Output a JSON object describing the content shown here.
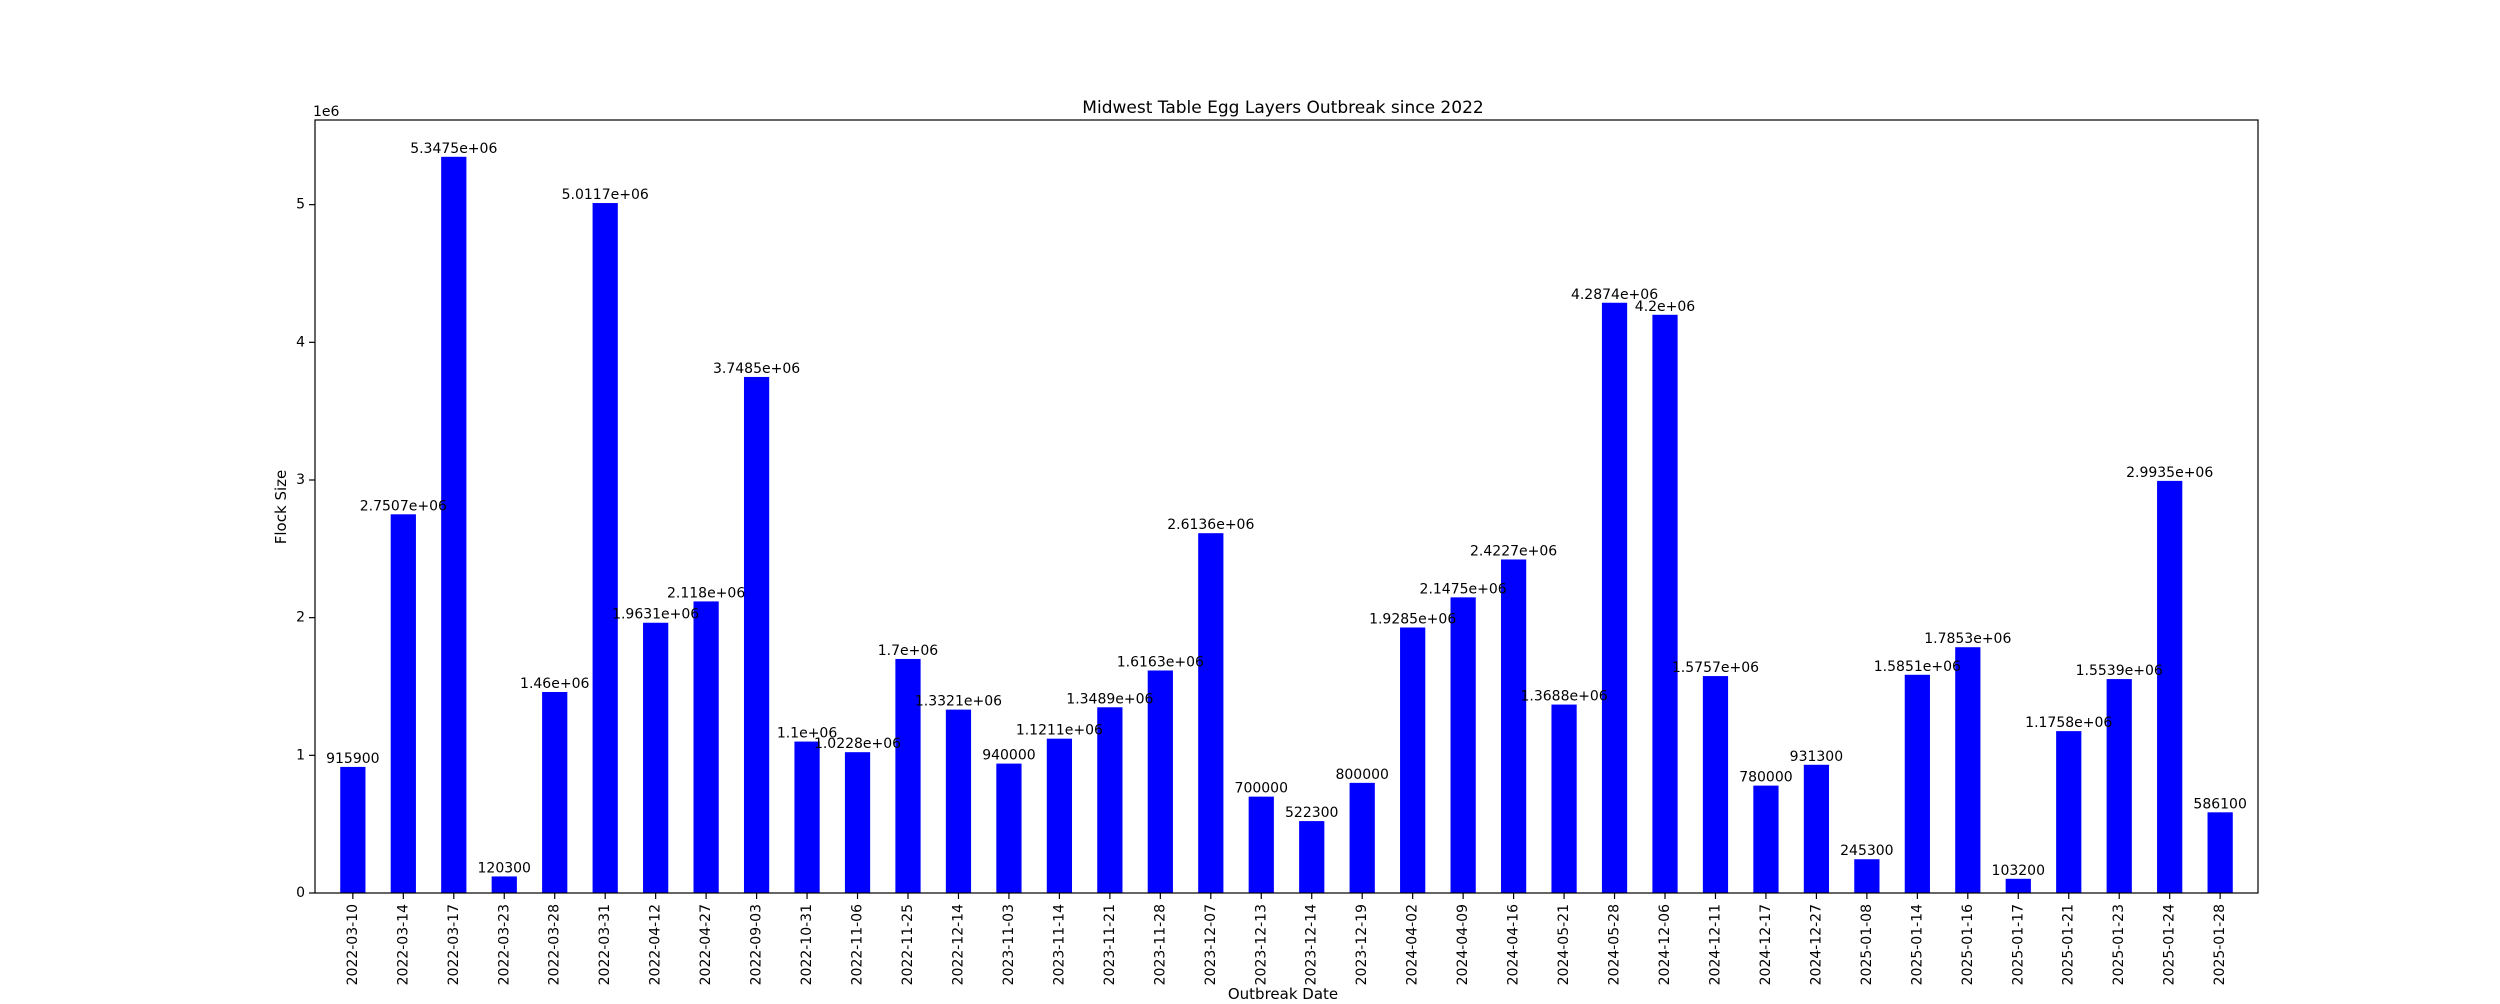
{
  "chart_data": {
    "type": "bar",
    "title": "Midwest Table Egg Layers Outbreak since 2022",
    "xlabel": "Outbreak Date",
    "ylabel": "Flock Size",
    "y_offset_label": "1e6",
    "y_scale": 1000000,
    "ylim": [
      0,
      5614875
    ],
    "yticks": [
      0,
      1,
      2,
      3,
      4,
      5
    ],
    "bar_color": "#0000ff",
    "grid": false,
    "categories": [
      "2022-03-10",
      "2022-03-14",
      "2022-03-17",
      "2022-03-23",
      "2022-03-28",
      "2022-03-31",
      "2022-04-12",
      "2022-04-27",
      "2022-09-03",
      "2022-10-31",
      "2022-11-06",
      "2022-11-25",
      "2022-12-14",
      "2023-11-03",
      "2023-11-14",
      "2023-11-21",
      "2023-11-28",
      "2023-12-07",
      "2023-12-13",
      "2023-12-14",
      "2023-12-19",
      "2024-04-02",
      "2024-04-09",
      "2024-04-16",
      "2024-05-21",
      "2024-05-28",
      "2024-12-06",
      "2024-12-11",
      "2024-12-17",
      "2024-12-27",
      "2025-01-08",
      "2025-01-14",
      "2025-01-16",
      "2025-01-17",
      "2025-01-21",
      "2025-01-23",
      "2025-01-24",
      "2025-01-28"
    ],
    "values": [
      915900,
      2750700,
      5347500,
      120300,
      1460000,
      5011700,
      1963100,
      2118000,
      3748500,
      1100000,
      1022800,
      1700000,
      1332100,
      940000,
      1121100,
      1348900,
      1616300,
      2613600,
      700000,
      522300,
      800000,
      1928500,
      2147500,
      2422700,
      1368800,
      4287400,
      4200000,
      1575700,
      780000,
      931300,
      245300,
      1585100,
      1785300,
      103200,
      1175800,
      1553900,
      2993500,
      586100
    ],
    "data_labels": [
      "915900",
      "2.7507e+06",
      "5.3475e+06",
      "120300",
      "1.46e+06",
      "5.0117e+06",
      "1.9631e+06",
      "2.118e+06",
      "3.7485e+06",
      "1.1e+06",
      "1.0228e+06",
      "1.7e+06",
      "1.3321e+06",
      "940000",
      "1.1211e+06",
      "1.3489e+06",
      "1.6163e+06",
      "2.6136e+06",
      "700000",
      "522300",
      "800000",
      "1.9285e+06",
      "2.1475e+06",
      "2.4227e+06",
      "1.3688e+06",
      "4.2874e+06",
      "4.2e+06",
      "1.5757e+06",
      "780000",
      "931300",
      "245300",
      "1.5851e+06",
      "1.7853e+06",
      "103200",
      "1.1758e+06",
      "1.5539e+06",
      "2.9935e+06",
      "586100"
    ]
  }
}
